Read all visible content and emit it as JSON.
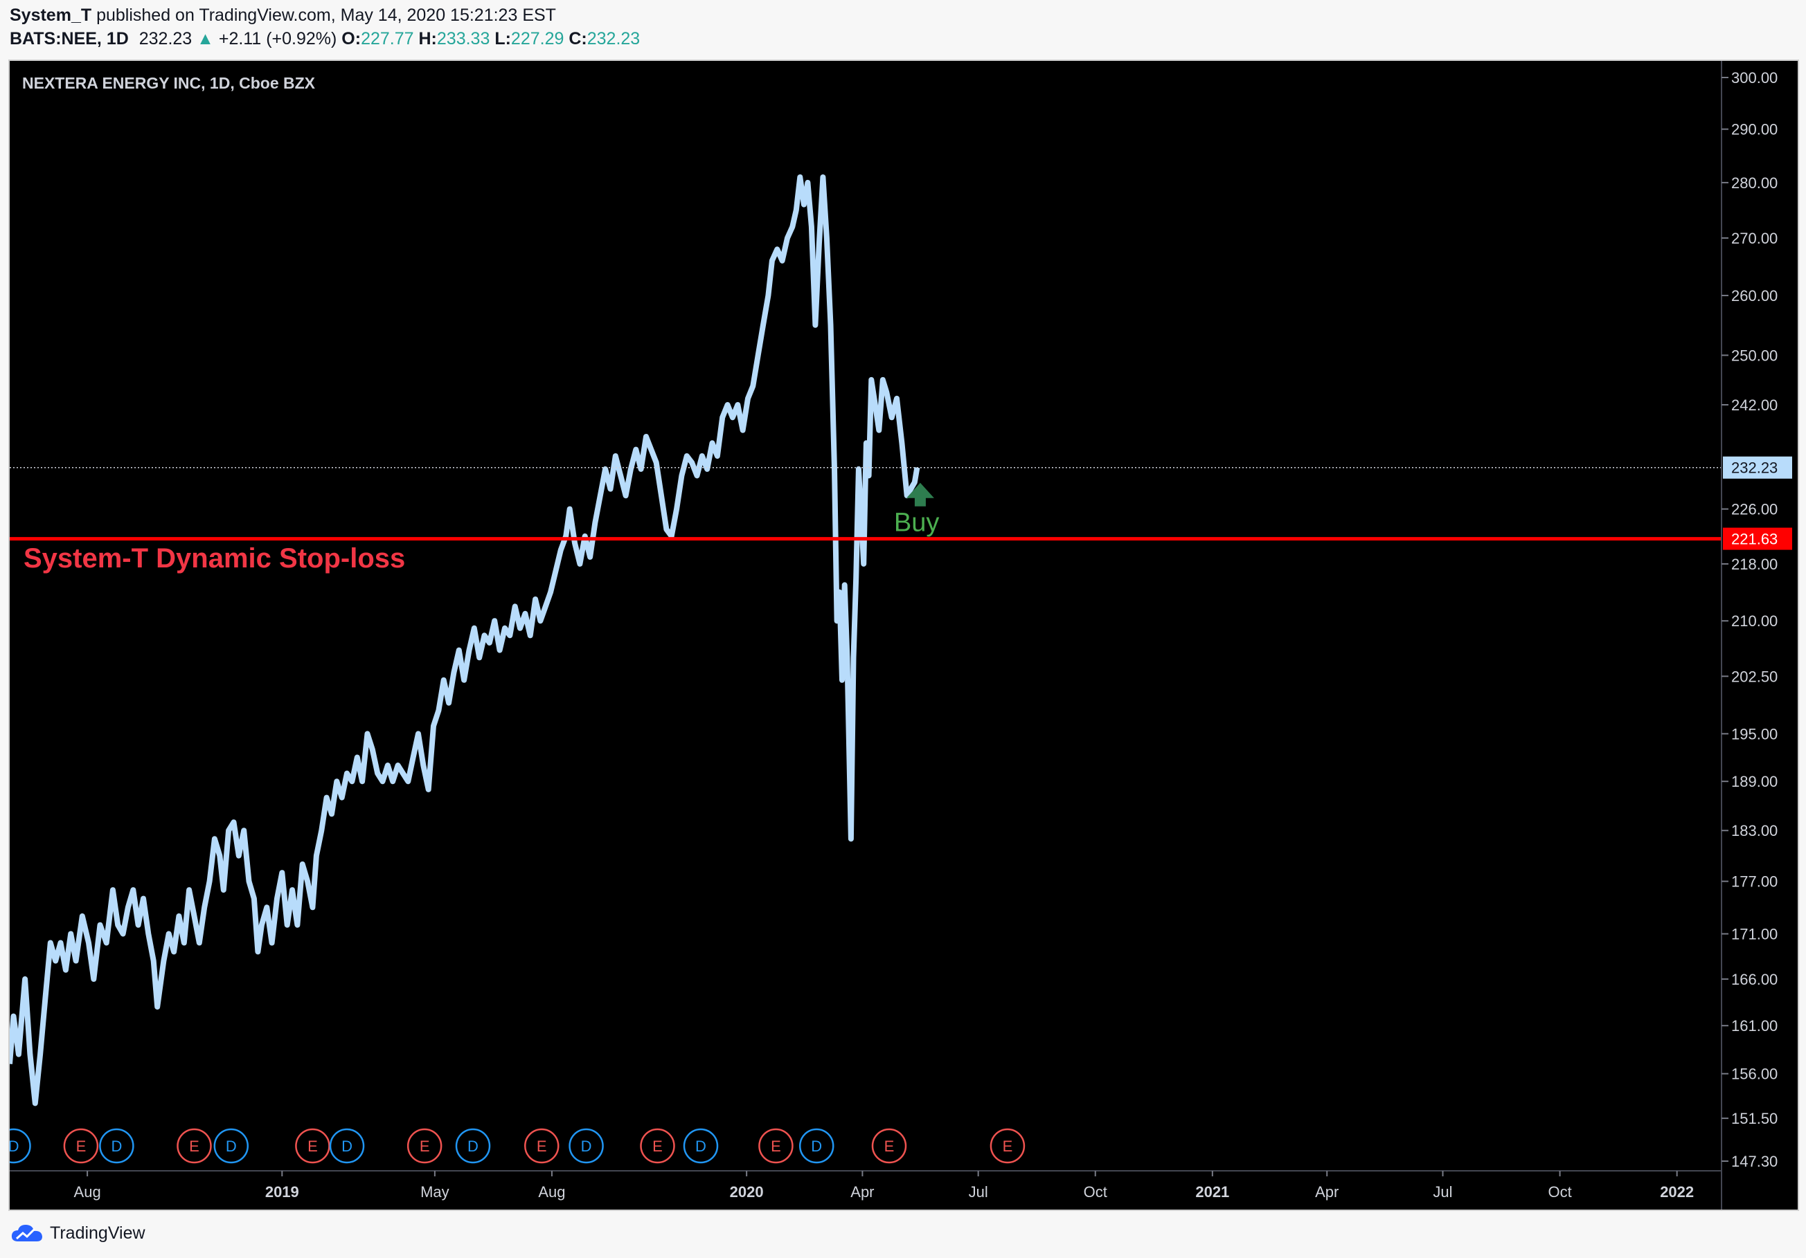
{
  "header": {
    "line1_user": "System_T",
    "line1_rest": "published on TradingView.com, May 14, 2020 15:21:23 EST",
    "symbol": "BATS:NEE, 1D",
    "last": "232.23",
    "change": "+2.11 (+0.92%)",
    "o_label": "O:",
    "o": "227.77",
    "h_label": "H:",
    "h": "233.33",
    "l_label": "L:",
    "l": "227.29",
    "c_label": "C:",
    "c": "232.23"
  },
  "chart_title": "NEXTERA ENERGY INC, 1D, Cboe BZX",
  "stop_loss_label": "System-T Dynamic Stop-loss",
  "buy_label": "Buy",
  "footer": {
    "brand": "TradingView"
  },
  "colors": {
    "line": "#b8dcfb",
    "stop": "#ff0000",
    "stop_text": "#f23645",
    "buy": "#2e7d4f",
    "buy_text": "#4caf50",
    "earnings": "#ef5350",
    "dividend": "#2196f3"
  },
  "chart_data": {
    "type": "line",
    "title": "NEXTERA ENERGY INC, 1D, Cboe BZX",
    "y_ticks": [
      "300.00",
      "290.00",
      "280.00",
      "270.00",
      "260.00",
      "250.00",
      "242.00",
      "226.00",
      "218.00",
      "210.00",
      "202.50",
      "195.00",
      "189.00",
      "183.00",
      "177.00",
      "171.00",
      "166.00",
      "161.00",
      "156.00",
      "151.50",
      "147.30"
    ],
    "y_scale": "log",
    "ylim": [
      147.3,
      300
    ],
    "x_ticks": [
      {
        "label": "Aug",
        "date": "2018-08-01",
        "bold": false
      },
      {
        "label": "2019",
        "date": "2019-01-01",
        "bold": true
      },
      {
        "label": "May",
        "date": "2019-05-01",
        "bold": false
      },
      {
        "label": "Aug",
        "date": "2019-08-01",
        "bold": false
      },
      {
        "label": "2020",
        "date": "2020-01-01",
        "bold": true
      },
      {
        "label": "Apr",
        "date": "2020-04-01",
        "bold": false
      },
      {
        "label": "Jul",
        "date": "2020-07-01",
        "bold": false
      },
      {
        "label": "Oct",
        "date": "2020-10-01",
        "bold": false
      },
      {
        "label": "2021",
        "date": "2021-01-01",
        "bold": true
      },
      {
        "label": "Apr",
        "date": "2021-04-01",
        "bold": false
      },
      {
        "label": "Jul",
        "date": "2021-07-01",
        "bold": false
      },
      {
        "label": "Oct",
        "date": "2021-10-01",
        "bold": false
      },
      {
        "label": "2022",
        "date": "2022-01-01",
        "bold": true
      }
    ],
    "xlim": [
      "2018-06-01",
      "2022-02-05"
    ],
    "series": [
      {
        "points": [
          [
            "2018-06-01",
            157
          ],
          [
            "2018-06-04",
            162
          ],
          [
            "2018-06-08",
            158
          ],
          [
            "2018-06-13",
            166
          ],
          [
            "2018-06-17",
            158
          ],
          [
            "2018-06-21",
            153
          ],
          [
            "2018-06-25",
            158
          ],
          [
            "2018-06-29",
            164
          ],
          [
            "2018-07-03",
            170
          ],
          [
            "2018-07-07",
            168
          ],
          [
            "2018-07-11",
            170
          ],
          [
            "2018-07-15",
            167
          ],
          [
            "2018-07-19",
            171
          ],
          [
            "2018-07-23",
            168
          ],
          [
            "2018-07-28",
            173
          ],
          [
            "2018-08-02",
            170
          ],
          [
            "2018-08-06",
            166
          ],
          [
            "2018-08-11",
            172
          ],
          [
            "2018-08-16",
            170
          ],
          [
            "2018-08-21",
            176
          ],
          [
            "2018-08-25",
            172
          ],
          [
            "2018-08-29",
            171
          ],
          [
            "2018-09-02",
            174
          ],
          [
            "2018-09-06",
            176
          ],
          [
            "2018-09-10",
            172
          ],
          [
            "2018-09-14",
            175
          ],
          [
            "2018-09-18",
            171
          ],
          [
            "2018-09-22",
            168
          ],
          [
            "2018-09-25",
            163
          ],
          [
            "2018-09-30",
            168
          ],
          [
            "2018-10-04",
            171
          ],
          [
            "2018-10-08",
            169
          ],
          [
            "2018-10-12",
            173
          ],
          [
            "2018-10-16",
            170
          ],
          [
            "2018-10-20",
            176
          ],
          [
            "2018-10-24",
            173
          ],
          [
            "2018-10-28",
            170
          ],
          [
            "2018-11-01",
            174
          ],
          [
            "2018-11-05",
            177
          ],
          [
            "2018-11-09",
            182
          ],
          [
            "2018-11-13",
            180
          ],
          [
            "2018-11-16",
            176
          ],
          [
            "2018-11-20",
            183
          ],
          [
            "2018-11-24",
            184
          ],
          [
            "2018-11-28",
            180
          ],
          [
            "2018-12-02",
            183
          ],
          [
            "2018-12-06",
            177
          ],
          [
            "2018-12-10",
            175
          ],
          [
            "2018-12-13",
            169
          ],
          [
            "2018-12-16",
            172
          ],
          [
            "2018-12-20",
            174
          ],
          [
            "2018-12-24",
            170
          ],
          [
            "2018-12-28",
            175
          ],
          [
            "2019-01-01",
            178
          ],
          [
            "2019-01-05",
            172
          ],
          [
            "2019-01-09",
            176
          ],
          [
            "2019-01-13",
            172
          ],
          [
            "2019-01-17",
            179
          ],
          [
            "2019-01-21",
            177
          ],
          [
            "2019-01-25",
            174
          ],
          [
            "2019-01-28",
            180
          ],
          [
            "2019-02-01",
            183
          ],
          [
            "2019-02-05",
            187
          ],
          [
            "2019-02-09",
            185
          ],
          [
            "2019-02-13",
            189
          ],
          [
            "2019-02-17",
            187
          ],
          [
            "2019-02-21",
            190
          ],
          [
            "2019-02-25",
            189
          ],
          [
            "2019-03-01",
            192
          ],
          [
            "2019-03-05",
            189
          ],
          [
            "2019-03-09",
            195
          ],
          [
            "2019-03-13",
            193
          ],
          [
            "2019-03-17",
            190
          ],
          [
            "2019-03-21",
            189
          ],
          [
            "2019-03-25",
            191
          ],
          [
            "2019-03-29",
            189
          ],
          [
            "2019-04-02",
            191
          ],
          [
            "2019-04-06",
            190
          ],
          [
            "2019-04-10",
            189
          ],
          [
            "2019-04-14",
            192
          ],
          [
            "2019-04-18",
            195
          ],
          [
            "2019-04-22",
            191
          ],
          [
            "2019-04-26",
            188
          ],
          [
            "2019-04-30",
            196
          ],
          [
            "2019-05-04",
            198
          ],
          [
            "2019-05-08",
            202
          ],
          [
            "2019-05-12",
            199
          ],
          [
            "2019-05-16",
            203
          ],
          [
            "2019-05-20",
            206
          ],
          [
            "2019-05-24",
            202
          ],
          [
            "2019-05-28",
            206
          ],
          [
            "2019-06-01",
            209
          ],
          [
            "2019-06-05",
            205
          ],
          [
            "2019-06-09",
            208
          ],
          [
            "2019-06-13",
            207
          ],
          [
            "2019-06-17",
            210
          ],
          [
            "2019-06-21",
            206
          ],
          [
            "2019-06-25",
            209
          ],
          [
            "2019-06-29",
            208
          ],
          [
            "2019-07-03",
            212
          ],
          [
            "2019-07-07",
            209
          ],
          [
            "2019-07-11",
            211
          ],
          [
            "2019-07-15",
            208
          ],
          [
            "2019-07-19",
            213
          ],
          [
            "2019-07-23",
            210
          ],
          [
            "2019-07-27",
            212
          ],
          [
            "2019-07-31",
            214
          ],
          [
            "2019-08-04",
            217
          ],
          [
            "2019-08-08",
            220
          ],
          [
            "2019-08-12",
            222
          ],
          [
            "2019-08-15",
            226
          ],
          [
            "2019-08-19",
            221
          ],
          [
            "2019-08-23",
            218
          ],
          [
            "2019-08-27",
            222
          ],
          [
            "2019-08-31",
            219
          ],
          [
            "2019-09-04",
            224
          ],
          [
            "2019-09-08",
            228
          ],
          [
            "2019-09-12",
            232
          ],
          [
            "2019-09-16",
            229
          ],
          [
            "2019-09-20",
            234
          ],
          [
            "2019-09-24",
            231
          ],
          [
            "2019-09-28",
            228
          ],
          [
            "2019-10-02",
            232
          ],
          [
            "2019-10-06",
            235
          ],
          [
            "2019-10-10",
            232
          ],
          [
            "2019-10-14",
            237
          ],
          [
            "2019-10-18",
            235
          ],
          [
            "2019-10-22",
            233
          ],
          [
            "2019-10-26",
            228
          ],
          [
            "2019-10-30",
            223
          ],
          [
            "2019-11-03",
            222
          ],
          [
            "2019-11-07",
            226
          ],
          [
            "2019-11-11",
            231
          ],
          [
            "2019-11-15",
            234
          ],
          [
            "2019-11-19",
            233
          ],
          [
            "2019-11-23",
            231
          ],
          [
            "2019-11-27",
            234
          ],
          [
            "2019-12-01",
            232
          ],
          [
            "2019-12-05",
            236
          ],
          [
            "2019-12-09",
            234
          ],
          [
            "2019-12-13",
            240
          ],
          [
            "2019-12-17",
            242
          ],
          [
            "2019-12-21",
            240
          ],
          [
            "2019-12-25",
            242
          ],
          [
            "2019-12-29",
            238
          ],
          [
            "2020-01-02",
            243
          ],
          [
            "2020-01-06",
            245
          ],
          [
            "2020-01-10",
            250
          ],
          [
            "2020-01-14",
            255
          ],
          [
            "2020-01-18",
            260
          ],
          [
            "2020-01-21",
            266
          ],
          [
            "2020-01-25",
            268
          ],
          [
            "2020-01-29",
            266
          ],
          [
            "2020-02-02",
            270
          ],
          [
            "2020-02-06",
            272
          ],
          [
            "2020-02-09",
            275
          ],
          [
            "2020-02-12",
            281
          ],
          [
            "2020-02-15",
            276
          ],
          [
            "2020-02-18",
            280
          ],
          [
            "2020-02-21",
            272
          ],
          [
            "2020-02-24",
            255
          ],
          [
            "2020-02-27",
            269
          ],
          [
            "2020-03-01",
            281
          ],
          [
            "2020-03-04",
            270
          ],
          [
            "2020-03-07",
            255
          ],
          [
            "2020-03-10",
            232
          ],
          [
            "2020-03-12",
            210
          ],
          [
            "2020-03-14",
            214
          ],
          [
            "2020-03-16",
            202
          ],
          [
            "2020-03-18",
            215
          ],
          [
            "2020-03-20",
            205
          ],
          [
            "2020-03-23",
            182
          ],
          [
            "2020-03-25",
            205
          ],
          [
            "2020-03-27",
            216
          ],
          [
            "2020-03-29",
            232
          ],
          [
            "2020-03-31",
            225
          ],
          [
            "2020-04-02",
            218
          ],
          [
            "2020-04-04",
            236
          ],
          [
            "2020-04-06",
            231
          ],
          [
            "2020-04-08",
            246
          ],
          [
            "2020-04-11",
            242
          ],
          [
            "2020-04-14",
            238
          ],
          [
            "2020-04-17",
            246
          ],
          [
            "2020-04-20",
            244
          ],
          [
            "2020-04-24",
            240
          ],
          [
            "2020-04-28",
            243
          ],
          [
            "2020-05-02",
            236
          ],
          [
            "2020-05-06",
            228
          ],
          [
            "2020-05-09",
            229
          ],
          [
            "2020-05-12",
            230
          ],
          [
            "2020-05-14",
            232.23
          ]
        ]
      }
    ],
    "last_value": "232.23",
    "stop_loss": {
      "value": "221.63",
      "label": "System-T Dynamic Stop-loss"
    },
    "buy_signal": {
      "date": "2020-05-11",
      "label": "Buy"
    },
    "events": [
      {
        "type": "D",
        "date": "2018-06-04"
      },
      {
        "type": "E",
        "date": "2018-07-27"
      },
      {
        "type": "D",
        "date": "2018-08-24"
      },
      {
        "type": "E",
        "date": "2018-10-24"
      },
      {
        "type": "D",
        "date": "2018-11-22"
      },
      {
        "type": "E",
        "date": "2019-01-25"
      },
      {
        "type": "D",
        "date": "2019-02-21"
      },
      {
        "type": "E",
        "date": "2019-04-23"
      },
      {
        "type": "D",
        "date": "2019-05-31"
      },
      {
        "type": "E",
        "date": "2019-07-24"
      },
      {
        "type": "D",
        "date": "2019-08-28"
      },
      {
        "type": "E",
        "date": "2019-10-23"
      },
      {
        "type": "D",
        "date": "2019-11-26"
      },
      {
        "type": "E",
        "date": "2020-01-24"
      },
      {
        "type": "D",
        "date": "2020-02-25"
      },
      {
        "type": "E",
        "date": "2020-04-22"
      },
      {
        "type": "E",
        "date": "2020-07-24"
      }
    ]
  }
}
